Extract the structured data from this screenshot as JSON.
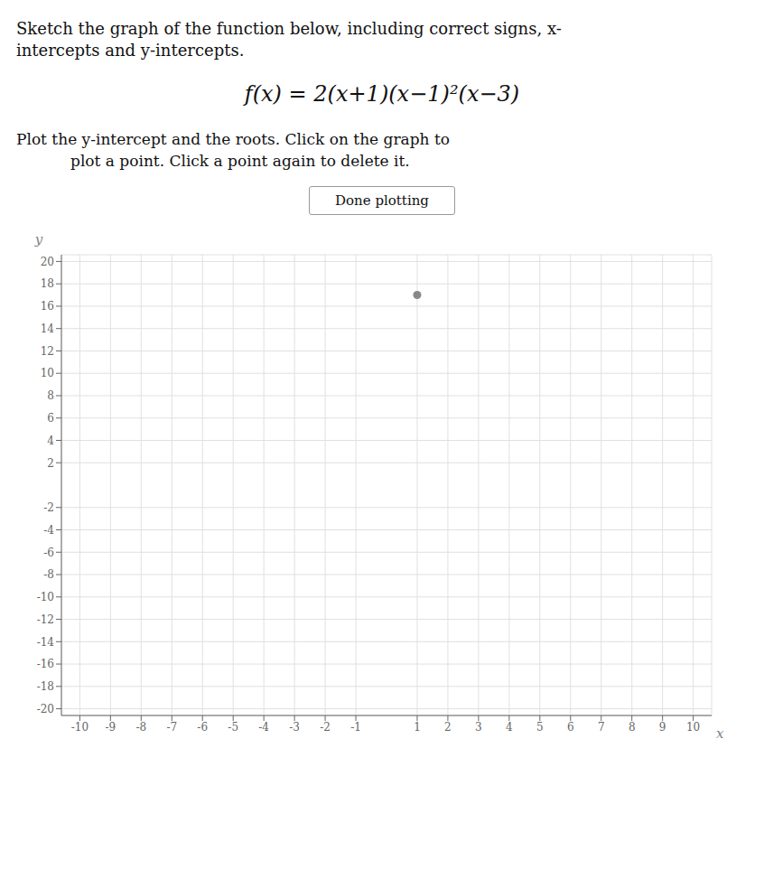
{
  "chart_data": {
    "type": "scatter",
    "title": [
      "Sketch the graph of the function below, including correct signs, x-",
      "intercepts and y-intercepts."
    ],
    "annotations": [
      "f(x) = 2(x+1)(x−1)²(x−3)",
      "Plot the y-intercept and the roots. Click on the graph to",
      "plot a point. Click a point again to delete it.",
      "Done plotting"
    ],
    "xlabel": "x",
    "ylabel": "y",
    "x": [
      1.0
    ],
    "values": [
      17.0
    ],
    "color": "#888888",
    "marker": "circle",
    "xlim": [
      -10.6,
      10.6
    ],
    "ylim": [
      -20.6,
      20.6
    ],
    "xticks": [
      -10,
      -9,
      -8,
      -7,
      -6,
      -5,
      -4,
      -3,
      -2,
      -1,
      1,
      2,
      3,
      4,
      5,
      6,
      7,
      8,
      9,
      10
    ],
    "yticks": [
      -20,
      -18,
      -16,
      -14,
      -12,
      -10,
      -8,
      -6,
      -4,
      -2,
      2,
      4,
      6,
      8,
      10,
      12,
      14,
      16,
      18,
      20
    ],
    "grid": true
  }
}
